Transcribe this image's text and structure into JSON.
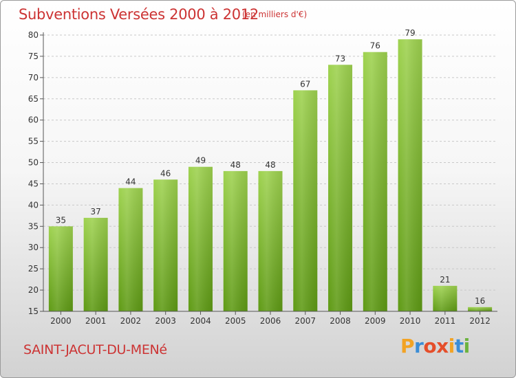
{
  "header": {
    "title": "Subventions Versées 2000 à 2012",
    "unit_note": "(en milliers d'€)"
  },
  "footer": {
    "municipality": "SAINT-JACUT-DU-MENé",
    "logo_text": "Proxiti"
  },
  "colors": {
    "title": "#cc3333",
    "bar_light": "#9ed24f",
    "bar_dark": "#5e9a14",
    "grid": "#c8c8c8"
  },
  "chart_data": {
    "type": "bar",
    "title": "Subventions Versées 2000 à 2012",
    "subtitle": "(en milliers d'€)",
    "xlabel": "",
    "ylabel": "",
    "categories": [
      "2000",
      "2001",
      "2002",
      "2003",
      "2004",
      "2005",
      "2006",
      "2007",
      "2008",
      "2009",
      "2010",
      "2011",
      "2012"
    ],
    "values": [
      35,
      37,
      44,
      46,
      49,
      48,
      48,
      67,
      73,
      76,
      79,
      21,
      16
    ],
    "ylim": [
      15,
      80
    ],
    "yticks": [
      15,
      20,
      25,
      30,
      35,
      40,
      45,
      50,
      55,
      60,
      65,
      70,
      75,
      80
    ],
    "grid": true,
    "data_labels": true
  }
}
